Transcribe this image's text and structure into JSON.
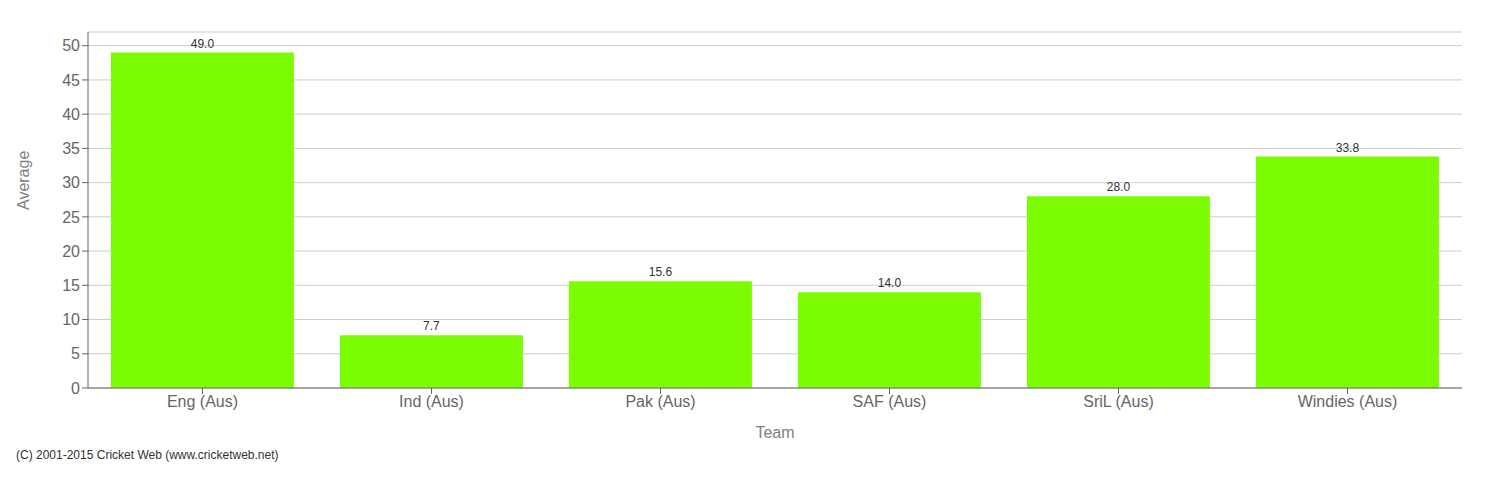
{
  "chart_data": {
    "type": "bar",
    "categories": [
      "Eng (Aus)",
      "Ind (Aus)",
      "Pak (Aus)",
      "SAF (Aus)",
      "SriL (Aus)",
      "Windies (Aus)"
    ],
    "values": [
      49.0,
      7.7,
      15.6,
      14.0,
      28.0,
      33.8
    ],
    "value_labels": [
      "49.0",
      "7.7",
      "15.6",
      "14.0",
      "28.0",
      "33.8"
    ],
    "data_labels": true,
    "color": "#7CFC00",
    "xlabel": "Team",
    "ylabel": "Average",
    "ylim": [
      0,
      52
    ],
    "yticks": [
      0,
      5,
      10,
      15,
      20,
      25,
      30,
      35,
      40,
      45,
      50
    ],
    "grid": true,
    "annotations": [
      "(C) 2001-2015 Cricket Web (www.cricketweb.net)"
    ]
  }
}
